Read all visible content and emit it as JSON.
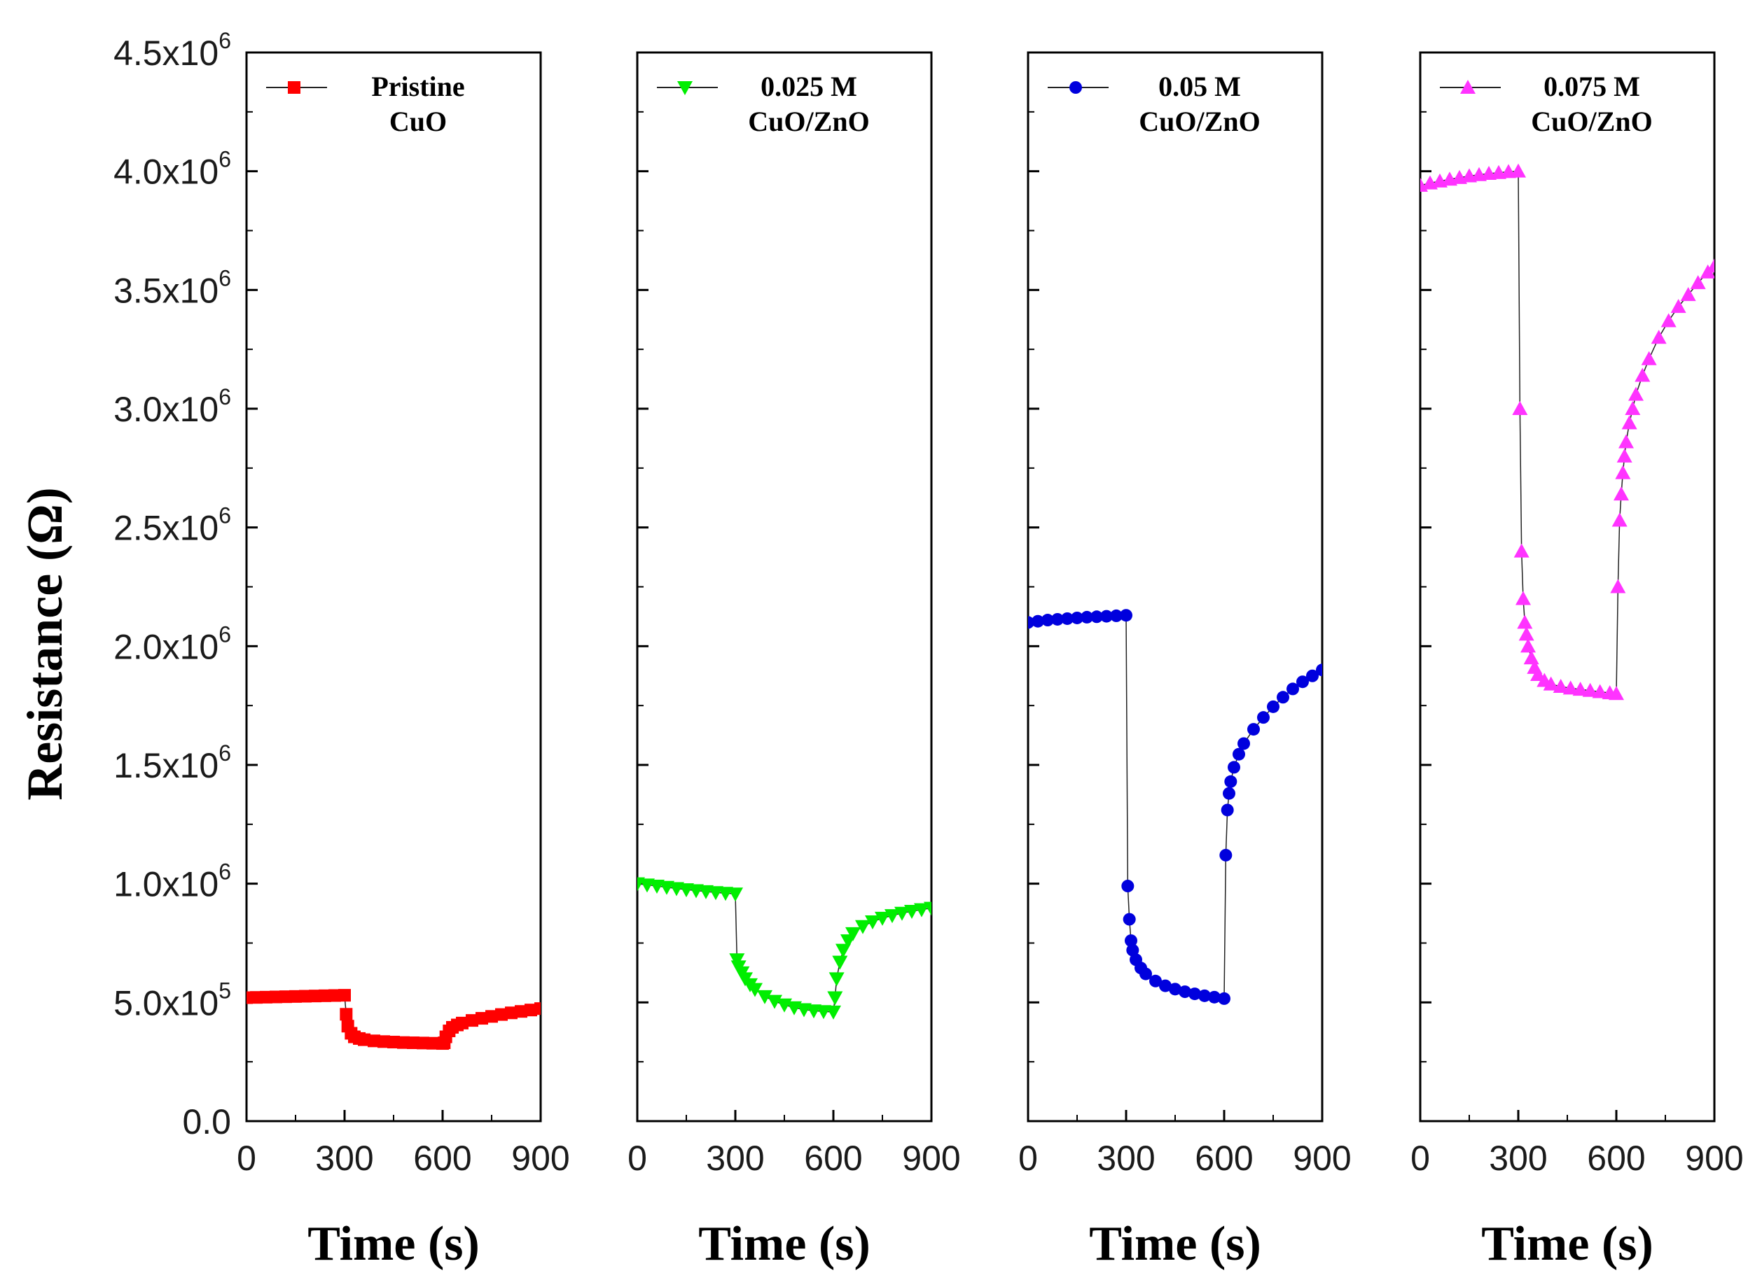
{
  "figure": {
    "ylabel": "Resistance (Ω)"
  },
  "chart_data": [
    {
      "type": "scatter",
      "name": "panel-1",
      "legend": [
        "Pristine",
        "CuO"
      ],
      "color": "#ff0000",
      "marker": "square",
      "xlabel": "Time (s)",
      "xlim": [
        0,
        900
      ],
      "xticks": [
        0,
        300,
        600,
        900
      ],
      "ylim": [
        0,
        4500000
      ],
      "yticks": [
        0,
        500000,
        1000000,
        1500000,
        2000000,
        2500000,
        3000000,
        3500000,
        4000000,
        4500000
      ],
      "ytick_labels": [
        {
          "mantissa": "0.0",
          "exponent": ""
        },
        {
          "mantissa": "5.0x10",
          "exponent": "5"
        },
        {
          "mantissa": "1.0x10",
          "exponent": "6"
        },
        {
          "mantissa": "1.5x10",
          "exponent": "6"
        },
        {
          "mantissa": "2.0x10",
          "exponent": "6"
        },
        {
          "mantissa": "2.5x10",
          "exponent": "6"
        },
        {
          "mantissa": "3.0x10",
          "exponent": "6"
        },
        {
          "mantissa": "3.5x10",
          "exponent": "6"
        },
        {
          "mantissa": "4.0x10",
          "exponent": "6"
        },
        {
          "mantissa": "4.5x10",
          "exponent": "6"
        }
      ],
      "ylabel": "Resistance (Ω)",
      "x": [
        0,
        30,
        60,
        90,
        120,
        150,
        180,
        210,
        240,
        270,
        300,
        305,
        310,
        320,
        330,
        345,
        360,
        390,
        420,
        450,
        480,
        510,
        540,
        570,
        600,
        605,
        610,
        620,
        630,
        645,
        660,
        690,
        720,
        750,
        780,
        810,
        840,
        870,
        900
      ],
      "y": [
        520000,
        521000,
        522000,
        523000,
        524000,
        525000,
        526000,
        527000,
        528000,
        529000,
        530000,
        450000,
        400000,
        370000,
        355000,
        348000,
        343000,
        338000,
        335000,
        333000,
        331000,
        330000,
        329000,
        328000,
        327000,
        330000,
        355000,
        380000,
        395000,
        405000,
        413000,
        424000,
        433000,
        441000,
        449000,
        456000,
        462000,
        468000,
        474000
      ]
    },
    {
      "type": "scatter",
      "name": "panel-2",
      "legend": [
        "0.025 M",
        "CuO/ZnO"
      ],
      "color": "#00ee00",
      "marker": "triangle-down",
      "xlabel": "Time (s)",
      "xlim": [
        0,
        900
      ],
      "xticks": [
        0,
        300,
        600,
        900
      ],
      "ylim": [
        0,
        4500000
      ],
      "x": [
        0,
        30,
        60,
        90,
        120,
        150,
        180,
        210,
        240,
        270,
        300,
        305,
        310,
        320,
        330,
        345,
        360,
        390,
        420,
        450,
        480,
        510,
        540,
        570,
        600,
        605,
        610,
        620,
        630,
        645,
        660,
        690,
        720,
        750,
        780,
        810,
        840,
        870,
        900
      ],
      "y": [
        1000000,
        995000,
        990000,
        985000,
        980000,
        975000,
        971000,
        967000,
        963000,
        960000,
        957000,
        680000,
        650000,
        625000,
        600000,
        575000,
        555000,
        525000,
        505000,
        490000,
        478000,
        470000,
        465000,
        462000,
        460000,
        520000,
        600000,
        670000,
        720000,
        760000,
        790000,
        820000,
        840000,
        855000,
        866000,
        876000,
        884000,
        891000,
        897000
      ]
    },
    {
      "type": "scatter",
      "name": "panel-3",
      "legend": [
        "0.05 M",
        "CuO/ZnO"
      ],
      "color": "#0000dd",
      "marker": "circle",
      "xlabel": "Time (s)",
      "xlim": [
        0,
        900
      ],
      "xticks": [
        0,
        300,
        600,
        900
      ],
      "ylim": [
        0,
        4500000
      ],
      "x": [
        0,
        30,
        60,
        90,
        120,
        150,
        180,
        210,
        240,
        270,
        300,
        305,
        310,
        315,
        320,
        330,
        345,
        360,
        390,
        420,
        450,
        480,
        510,
        540,
        570,
        600,
        605,
        610,
        615,
        620,
        630,
        645,
        660,
        690,
        720,
        750,
        780,
        810,
        840,
        870,
        900
      ],
      "y": [
        2100000,
        2105000,
        2110000,
        2113000,
        2116000,
        2119000,
        2122000,
        2124000,
        2126000,
        2128000,
        2130000,
        990000,
        850000,
        760000,
        720000,
        680000,
        645000,
        620000,
        590000,
        570000,
        556000,
        545000,
        536000,
        528000,
        522000,
        516000,
        1120000,
        1310000,
        1380000,
        1430000,
        1490000,
        1545000,
        1590000,
        1650000,
        1700000,
        1745000,
        1785000,
        1820000,
        1850000,
        1875000,
        1900000
      ]
    },
    {
      "type": "scatter",
      "name": "panel-4",
      "legend": [
        "0.075 M",
        "CuO/ZnO"
      ],
      "color": "#ff33ff",
      "marker": "triangle-up",
      "xlabel": "Time (s)",
      "xlim": [
        0,
        900
      ],
      "xticks": [
        0,
        300,
        600,
        900
      ],
      "ylim": [
        0,
        4500000
      ],
      "x": [
        0,
        30,
        60,
        90,
        120,
        150,
        180,
        210,
        240,
        270,
        300,
        305,
        310,
        315,
        320,
        325,
        330,
        340,
        350,
        360,
        380,
        400,
        430,
        460,
        490,
        520,
        550,
        580,
        600,
        605,
        610,
        615,
        620,
        625,
        630,
        640,
        650,
        660,
        680,
        700,
        730,
        760,
        790,
        820,
        850,
        880,
        900
      ],
      "y": [
        3940000,
        3950000,
        3958000,
        3966000,
        3973000,
        3980000,
        3985000,
        3990000,
        3994000,
        3998000,
        4000000,
        3000000,
        2400000,
        2200000,
        2100000,
        2050000,
        2000000,
        1950000,
        1910000,
        1880000,
        1855000,
        1840000,
        1830000,
        1823000,
        1818000,
        1813000,
        1808000,
        1803000,
        1800000,
        2250000,
        2530000,
        2640000,
        2730000,
        2800000,
        2860000,
        2940000,
        3000000,
        3060000,
        3140000,
        3210000,
        3300000,
        3370000,
        3430000,
        3480000,
        3530000,
        3575000,
        3600000
      ]
    }
  ]
}
